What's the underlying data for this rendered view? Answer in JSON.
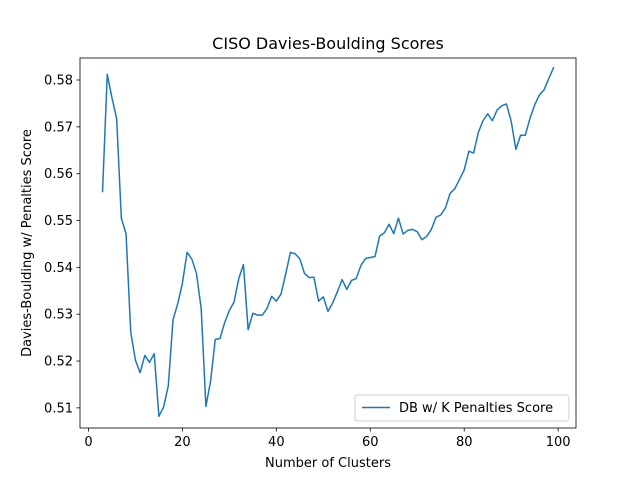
{
  "chart_data": {
    "type": "line",
    "title": "CISO Davies-Boulding Scores",
    "xlabel": "Number of Clusters",
    "ylabel": "Davies-Boulding w/ Penalties Score",
    "xlim": [
      -1.8,
      103.8
    ],
    "ylim": [
      0.5057,
      0.5847
    ],
    "xticks": [
      0,
      20,
      40,
      60,
      80,
      100
    ],
    "yticks": [
      0.51,
      0.52,
      0.53,
      0.54,
      0.55,
      0.56,
      0.57,
      0.58
    ],
    "ytick_labels": [
      "0.51",
      "0.52",
      "0.53",
      "0.54",
      "0.55",
      "0.56",
      "0.57",
      "0.58"
    ],
    "grid": false,
    "legend_position": "lower-right",
    "series": [
      {
        "name": "DB w/ K Penalties Score",
        "color": "#1f77b4",
        "x": [
          3,
          4,
          5,
          6,
          7,
          8,
          9,
          10,
          11,
          12,
          13,
          14,
          15,
          16,
          17,
          18,
          19,
          20,
          21,
          22,
          23,
          24,
          25,
          26,
          27,
          28,
          29,
          30,
          31,
          32,
          33,
          34,
          35,
          36,
          37,
          38,
          39,
          40,
          41,
          42,
          43,
          44,
          45,
          46,
          47,
          48,
          49,
          50,
          51,
          52,
          53,
          54,
          55,
          56,
          57,
          58,
          59,
          60,
          61,
          62,
          63,
          64,
          65,
          66,
          67,
          68,
          69,
          70,
          71,
          72,
          73,
          74,
          75,
          76,
          77,
          78,
          79,
          80,
          81,
          82,
          83,
          84,
          85,
          86,
          87,
          88,
          89,
          90,
          91,
          92,
          93,
          94,
          95,
          96,
          97,
          98,
          99
        ],
        "y": [
          0.5562,
          0.5812,
          0.5762,
          0.5718,
          0.5505,
          0.5472,
          0.5262,
          0.5202,
          0.5175,
          0.5212,
          0.5197,
          0.5216,
          0.5082,
          0.5102,
          0.5147,
          0.5288,
          0.5322,
          0.5366,
          0.5432,
          0.5418,
          0.5387,
          0.5312,
          0.5103,
          0.5157,
          0.5246,
          0.5248,
          0.5282,
          0.5308,
          0.5326,
          0.5376,
          0.5406,
          0.5267,
          0.5302,
          0.5298,
          0.5298,
          0.5312,
          0.5338,
          0.5328,
          0.5343,
          0.5386,
          0.5432,
          0.5429,
          0.5418,
          0.5387,
          0.5378,
          0.5379,
          0.5328,
          0.5337,
          0.5306,
          0.5324,
          0.5348,
          0.5374,
          0.5353,
          0.5372,
          0.5376,
          0.5404,
          0.5419,
          0.5421,
          0.5423,
          0.5467,
          0.5474,
          0.5492,
          0.5472,
          0.5505,
          0.5471,
          0.5479,
          0.5481,
          0.5476,
          0.5459,
          0.5466,
          0.5481,
          0.5507,
          0.5512,
          0.5527,
          0.5558,
          0.5568,
          0.5588,
          0.5608,
          0.5648,
          0.5644,
          0.5688,
          0.5713,
          0.5728,
          0.5713,
          0.5736,
          0.5745,
          0.5749,
          0.5712,
          0.5652,
          0.5682,
          0.5682,
          0.5718,
          0.5747,
          0.5768,
          0.5779,
          0.5803,
          0.5826
        ]
      }
    ]
  }
}
